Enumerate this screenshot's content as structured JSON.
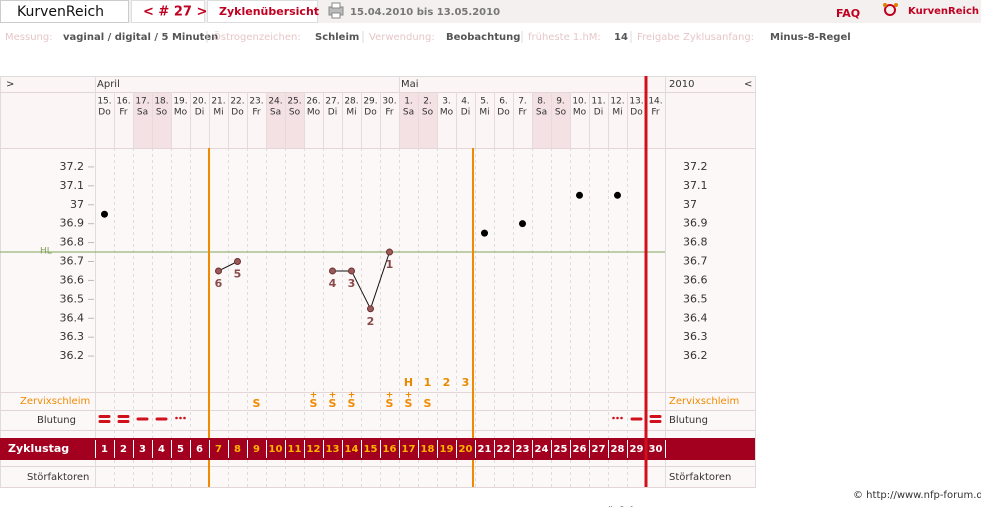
{
  "header": {
    "logo": "KurvenReich",
    "cycle_nav": "< # 27 >",
    "overview": "Zyklenübersicht",
    "range": "15.04.2010 bis 13.05.2010",
    "faq": "FAQ",
    "brand": "KurvenReich"
  },
  "settings": [
    {
      "label": "Messung:",
      "value": "vaginal / digital / 5 Minuten"
    },
    {
      "label": "Östrogenzeichen:",
      "value": "Schleim"
    },
    {
      "label": "Verwendung:",
      "value": "Beobachtung"
    },
    {
      "label": "früheste 1.hM:",
      "value": "14"
    },
    {
      "label": "Freigabe Zyklusanfang:",
      "value": "Minus-8-Regel"
    }
  ],
  "chart": {
    "nav_left": ">",
    "nav_right": "<",
    "year": "2010",
    "months": [
      "April",
      "Mai"
    ],
    "days": [
      {
        "date": "15.",
        "weekday": "Do"
      },
      {
        "date": "16.",
        "weekday": "Fr"
      },
      {
        "date": "17.",
        "weekday": "Sa"
      },
      {
        "date": "18.",
        "weekday": "So"
      },
      {
        "date": "19.",
        "weekday": "Mo"
      },
      {
        "date": "20.",
        "weekday": "Di"
      },
      {
        "date": "21.",
        "weekday": "Mi"
      },
      {
        "date": "22.",
        "weekday": "Do"
      },
      {
        "date": "23.",
        "weekday": "Fr"
      },
      {
        "date": "24.",
        "weekday": "Sa"
      },
      {
        "date": "25.",
        "weekday": "So"
      },
      {
        "date": "26.",
        "weekday": "Mo"
      },
      {
        "date": "27.",
        "weekday": "Di"
      },
      {
        "date": "28.",
        "weekday": "Mi"
      },
      {
        "date": "29.",
        "weekday": "Do"
      },
      {
        "date": "30.",
        "weekday": "Fr"
      },
      {
        "date": "1.",
        "weekday": "Sa"
      },
      {
        "date": "2.",
        "weekday": "So"
      },
      {
        "date": "3.",
        "weekday": "Mo"
      },
      {
        "date": "4.",
        "weekday": "Di"
      },
      {
        "date": "5.",
        "weekday": "Mi"
      },
      {
        "date": "6.",
        "weekday": "Do"
      },
      {
        "date": "7.",
        "weekday": "Fr"
      },
      {
        "date": "8.",
        "weekday": "Sa"
      },
      {
        "date": "9.",
        "weekday": "So"
      },
      {
        "date": "10.",
        "weekday": "Mo"
      },
      {
        "date": "11.",
        "weekday": "Di"
      },
      {
        "date": "12.",
        "weekday": "Mi"
      },
      {
        "date": "13.",
        "weekday": "Do"
      },
      {
        "date": "14.",
        "weekday": "Fr"
      }
    ],
    "cycle_days": [
      1,
      2,
      3,
      4,
      5,
      6,
      7,
      8,
      9,
      10,
      11,
      12,
      13,
      14,
      15,
      16,
      17,
      18,
      19,
      20,
      21,
      22,
      23,
      24,
      25,
      26,
      27,
      28,
      29,
      30
    ],
    "fertile_window": [
      7,
      20
    ],
    "cycle_end": 29,
    "ylim": [
      36.1,
      37.3
    ],
    "yticks": [
      36.2,
      36.3,
      36.4,
      36.5,
      36.6,
      36.7,
      36.8,
      36.9,
      37,
      37.1,
      37.2
    ],
    "temperatures": [
      36.95,
      null,
      null,
      null,
      null,
      null,
      36.65,
      36.7,
      null,
      null,
      null,
      null,
      36.65,
      36.65,
      36.45,
      36.75,
      null,
      null,
      null,
      null,
      36.85,
      null,
      36.9,
      null,
      null,
      37.05,
      null,
      37.05,
      null,
      null
    ],
    "count_labels": [
      null,
      null,
      null,
      null,
      null,
      null,
      "6",
      "5",
      null,
      null,
      null,
      null,
      "4",
      "3",
      "2",
      "1",
      null,
      null,
      null,
      null,
      null,
      null,
      null,
      null,
      null,
      null,
      null,
      null,
      null,
      null
    ],
    "cover_line": {
      "label": "HL",
      "value": 36.75
    },
    "peak_row": [
      null,
      null,
      null,
      null,
      null,
      null,
      null,
      null,
      null,
      null,
      null,
      null,
      null,
      null,
      null,
      null,
      "H",
      "1",
      "2",
      "3",
      null,
      null,
      null,
      null,
      null,
      null,
      null,
      null,
      null,
      null
    ],
    "mucus": [
      null,
      null,
      null,
      null,
      null,
      null,
      null,
      null,
      {
        "mark": "S"
      },
      null,
      null,
      {
        "mark": "S",
        "sup": "+"
      },
      {
        "mark": "S",
        "sup": "+"
      },
      {
        "mark": "S",
        "sup": "+"
      },
      null,
      {
        "mark": "S",
        "sup": "+"
      },
      {
        "mark": "S",
        "sup": "+"
      },
      {
        "mark": "S"
      },
      null,
      null,
      null,
      null,
      null,
      null,
      null,
      null,
      null,
      null,
      null,
      null
    ],
    "bleeding": [
      3,
      3,
      2,
      2,
      1,
      null,
      null,
      null,
      null,
      null,
      null,
      null,
      null,
      null,
      null,
      null,
      null,
      null,
      null,
      null,
      null,
      null,
      null,
      null,
      null,
      null,
      null,
      1,
      2,
      3
    ],
    "row_labels": {
      "mucus": "Zervixschleim",
      "bleeding": "Blutung",
      "cycle_day": "Zyklustag",
      "disturbances": "Störfaktoren"
    }
  },
  "footer": "© http://www.nfp-forum.de"
}
